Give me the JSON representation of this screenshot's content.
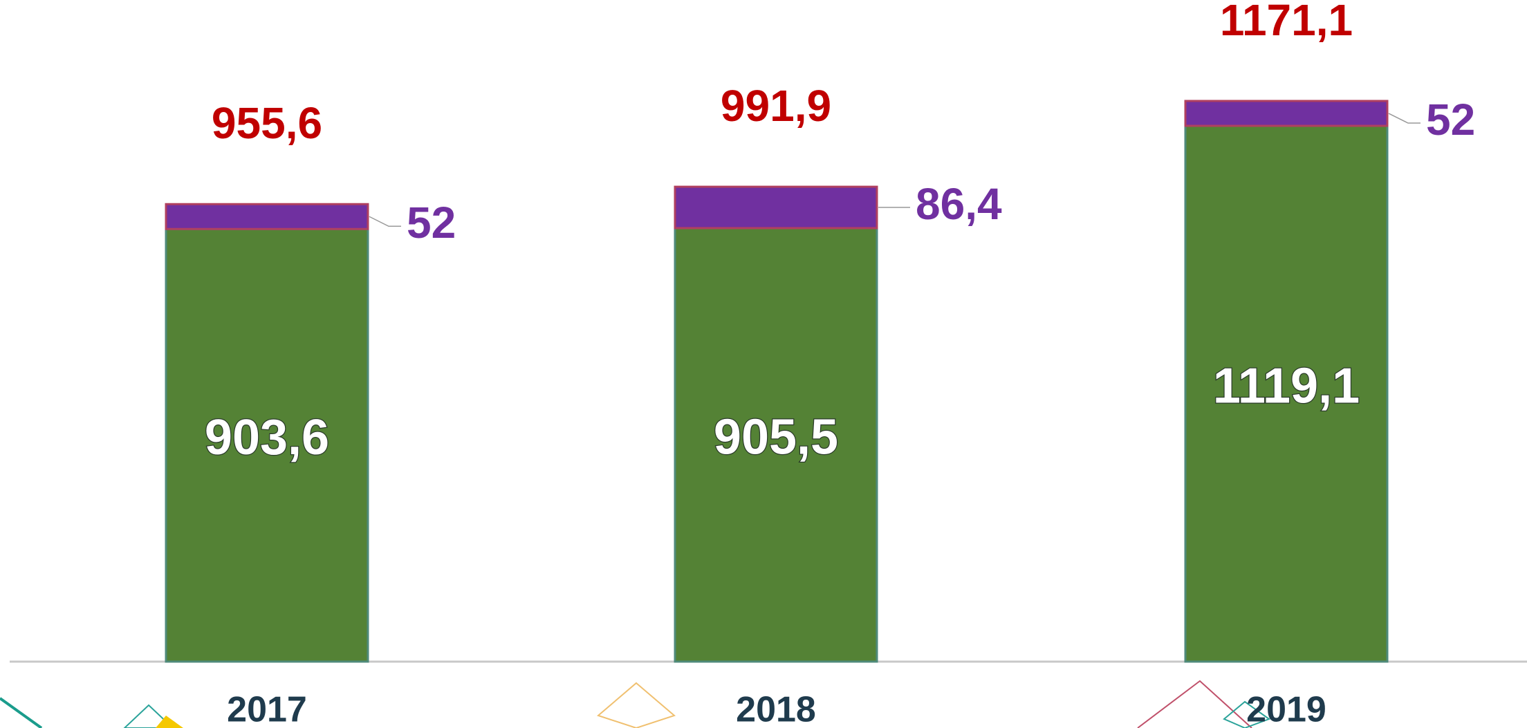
{
  "chart_data": {
    "type": "stacked_bar",
    "categories": [
      "2017",
      "2018",
      "2019"
    ],
    "series": [
      {
        "color": "#548235",
        "values": [
          903.6,
          905.5,
          1119.1
        ],
        "value_labels": [
          "903,6",
          "905,5",
          "1119,1"
        ]
      },
      {
        "color": "#7030a0",
        "values": [
          52,
          86.4,
          52
        ],
        "value_labels": [
          "52",
          "86,4",
          "52"
        ]
      }
    ],
    "totals": [
      955.6,
      991.9,
      1171.1
    ],
    "total_labels": [
      "955,6",
      "991,9",
      "1171,1"
    ],
    "total_color": "#c00000"
  }
}
